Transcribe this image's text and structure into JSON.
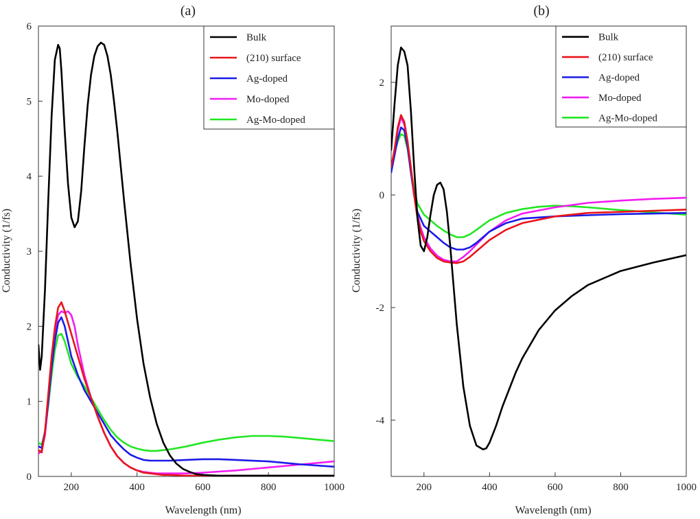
{
  "chart_data": [
    {
      "type": "line",
      "panel_label": "(a)",
      "xlabel": "Wavelength (nm)",
      "ylabel": "Conductivity (1/fs)",
      "xlim": [
        100,
        1000
      ],
      "ylim": [
        0,
        6
      ],
      "xticks": [
        200,
        400,
        600,
        800,
        1000
      ],
      "yticks": [
        0,
        1,
        2,
        3,
        4,
        5,
        6
      ],
      "legend_position": "top-right",
      "series": [
        {
          "name": "Bulk",
          "color": "#000000",
          "x": [
            100,
            105,
            110,
            120,
            130,
            140,
            150,
            160,
            165,
            170,
            180,
            190,
            200,
            210,
            220,
            230,
            240,
            250,
            260,
            270,
            280,
            290,
            300,
            310,
            320,
            330,
            340,
            350,
            360,
            380,
            400,
            420,
            440,
            460,
            480,
            500,
            520,
            540,
            560,
            580,
            600,
            650,
            700,
            800,
            900,
            1000
          ],
          "y": [
            1.75,
            1.42,
            1.6,
            2.5,
            3.7,
            4.8,
            5.55,
            5.75,
            5.7,
            5.4,
            4.6,
            3.9,
            3.45,
            3.32,
            3.4,
            3.8,
            4.4,
            4.95,
            5.35,
            5.6,
            5.73,
            5.78,
            5.75,
            5.6,
            5.35,
            5.0,
            4.6,
            4.15,
            3.7,
            2.85,
            2.1,
            1.5,
            1.05,
            0.7,
            0.45,
            0.28,
            0.17,
            0.1,
            0.06,
            0.03,
            0.02,
            0.01,
            0.01,
            0.01,
            0.01,
            0.01
          ]
        },
        {
          "name": "(210) surface",
          "color": "#e8141a",
          "x": [
            100,
            110,
            120,
            130,
            140,
            150,
            160,
            170,
            180,
            190,
            200,
            220,
            240,
            260,
            280,
            300,
            320,
            340,
            360,
            380,
            400,
            420,
            440,
            460,
            480,
            500,
            550,
            600,
            700,
            800,
            900,
            1000
          ],
          "y": [
            0.35,
            0.32,
            0.6,
            1.1,
            1.6,
            1.98,
            2.25,
            2.32,
            2.2,
            2.05,
            1.9,
            1.6,
            1.3,
            1.05,
            0.8,
            0.58,
            0.4,
            0.27,
            0.18,
            0.12,
            0.08,
            0.05,
            0.04,
            0.03,
            0.02,
            0.02,
            0.01,
            0.01,
            0.01,
            0.01,
            0.01,
            0.01
          ]
        },
        {
          "name": "Ag-doped",
          "color": "#1a1ae8",
          "x": [
            100,
            110,
            120,
            130,
            140,
            150,
            160,
            170,
            180,
            190,
            200,
            220,
            240,
            260,
            280,
            300,
            320,
            340,
            360,
            380,
            400,
            420,
            440,
            460,
            500,
            550,
            600,
            650,
            700,
            800,
            900,
            1000
          ],
          "y": [
            0.4,
            0.38,
            0.6,
            1.0,
            1.45,
            1.8,
            2.05,
            2.12,
            2.0,
            1.8,
            1.6,
            1.35,
            1.15,
            1.0,
            0.85,
            0.7,
            0.55,
            0.45,
            0.36,
            0.29,
            0.25,
            0.22,
            0.21,
            0.21,
            0.21,
            0.22,
            0.23,
            0.23,
            0.22,
            0.2,
            0.16,
            0.13
          ]
        },
        {
          "name": "Mo-doped",
          "color": "#f21cf2",
          "x": [
            100,
            110,
            120,
            130,
            140,
            150,
            160,
            170,
            180,
            190,
            200,
            210,
            220,
            240,
            260,
            280,
            300,
            320,
            340,
            360,
            380,
            400,
            420,
            440,
            460,
            500,
            550,
            600,
            700,
            800,
            900,
            1000
          ],
          "y": [
            0.3,
            0.35,
            0.55,
            1.0,
            1.5,
            1.9,
            2.15,
            2.2,
            2.18,
            2.2,
            2.15,
            2.0,
            1.75,
            1.35,
            1.05,
            0.8,
            0.58,
            0.4,
            0.27,
            0.18,
            0.12,
            0.08,
            0.06,
            0.05,
            0.04,
            0.04,
            0.04,
            0.05,
            0.08,
            0.12,
            0.16,
            0.2
          ]
        },
        {
          "name": "Ag-Mo-doped",
          "color": "#22e622",
          "x": [
            100,
            110,
            120,
            130,
            140,
            150,
            160,
            170,
            180,
            190,
            200,
            220,
            240,
            260,
            280,
            300,
            320,
            340,
            360,
            380,
            400,
            420,
            440,
            460,
            480,
            500,
            550,
            600,
            650,
            700,
            750,
            800,
            850,
            900,
            950,
            1000
          ],
          "y": [
            0.45,
            0.42,
            0.6,
            0.95,
            1.35,
            1.68,
            1.88,
            1.9,
            1.8,
            1.65,
            1.5,
            1.32,
            1.2,
            1.05,
            0.9,
            0.75,
            0.62,
            0.52,
            0.45,
            0.4,
            0.37,
            0.35,
            0.34,
            0.34,
            0.35,
            0.36,
            0.4,
            0.45,
            0.49,
            0.52,
            0.54,
            0.54,
            0.53,
            0.51,
            0.49,
            0.47
          ]
        }
      ]
    },
    {
      "type": "line",
      "panel_label": "(b)",
      "xlabel": "Wavelength (nm)",
      "ylabel": "Conductivity (1/fs)",
      "xlim": [
        100,
        1000
      ],
      "ylim": [
        -5,
        3
      ],
      "xticks": [
        200,
        400,
        600,
        800,
        1000
      ],
      "yticks": [
        -4,
        -2,
        0,
        2
      ],
      "legend_position": "top-right",
      "series": [
        {
          "name": "Bulk",
          "color": "#000000",
          "x": [
            100,
            110,
            120,
            130,
            140,
            150,
            160,
            170,
            180,
            190,
            200,
            210,
            220,
            230,
            240,
            250,
            260,
            270,
            280,
            290,
            300,
            320,
            340,
            360,
            380,
            390,
            400,
            420,
            440,
            460,
            480,
            500,
            550,
            600,
            650,
            700,
            800,
            900,
            1000
          ],
          "y": [
            0.8,
            1.6,
            2.3,
            2.62,
            2.55,
            2.3,
            1.5,
            0.5,
            -0.4,
            -0.9,
            -1.0,
            -0.75,
            -0.35,
            0.0,
            0.18,
            0.22,
            0.1,
            -0.3,
            -0.9,
            -1.6,
            -2.3,
            -3.4,
            -4.1,
            -4.45,
            -4.52,
            -4.5,
            -4.4,
            -4.1,
            -3.75,
            -3.45,
            -3.15,
            -2.9,
            -2.4,
            -2.05,
            -1.8,
            -1.6,
            -1.35,
            -1.2,
            -1.07
          ]
        },
        {
          "name": "(210) surface",
          "color": "#e8141a",
          "x": [
            100,
            110,
            120,
            130,
            140,
            150,
            160,
            170,
            180,
            190,
            200,
            220,
            240,
            260,
            280,
            300,
            320,
            340,
            360,
            400,
            450,
            500,
            600,
            700,
            800,
            900,
            1000
          ],
          "y": [
            0.5,
            0.8,
            1.2,
            1.42,
            1.3,
            0.95,
            0.5,
            0.0,
            -0.4,
            -0.65,
            -0.82,
            -1.0,
            -1.12,
            -1.18,
            -1.2,
            -1.21,
            -1.18,
            -1.1,
            -1.0,
            -0.8,
            -0.62,
            -0.5,
            -0.38,
            -0.32,
            -0.3,
            -0.28,
            -0.26
          ]
        },
        {
          "name": "Ag-doped",
          "color": "#1a1ae8",
          "x": [
            100,
            110,
            120,
            130,
            140,
            150,
            160,
            170,
            180,
            200,
            220,
            240,
            260,
            280,
            300,
            320,
            340,
            360,
            400,
            450,
            500,
            600,
            700,
            800,
            900,
            1000
          ],
          "y": [
            0.4,
            0.7,
            1.0,
            1.2,
            1.15,
            0.85,
            0.4,
            0.0,
            -0.3,
            -0.55,
            -0.65,
            -0.75,
            -0.85,
            -0.93,
            -0.97,
            -0.97,
            -0.93,
            -0.85,
            -0.65,
            -0.5,
            -0.42,
            -0.38,
            -0.36,
            -0.34,
            -0.33,
            -0.32
          ]
        },
        {
          "name": "Mo-doped",
          "color": "#f21cf2",
          "x": [
            100,
            110,
            120,
            130,
            140,
            150,
            160,
            170,
            180,
            190,
            200,
            220,
            240,
            260,
            280,
            300,
            320,
            340,
            360,
            400,
            450,
            500,
            600,
            700,
            800,
            900,
            1000
          ],
          "y": [
            0.45,
            0.8,
            1.15,
            1.38,
            1.25,
            0.9,
            0.45,
            0.0,
            -0.35,
            -0.58,
            -0.75,
            -0.95,
            -1.08,
            -1.15,
            -1.18,
            -1.18,
            -1.1,
            -1.0,
            -0.88,
            -0.65,
            -0.45,
            -0.33,
            -0.22,
            -0.14,
            -0.1,
            -0.07,
            -0.05
          ]
        },
        {
          "name": "Ag-Mo-doped",
          "color": "#22e622",
          "x": [
            100,
            110,
            120,
            130,
            140,
            150,
            160,
            170,
            180,
            200,
            220,
            240,
            260,
            280,
            300,
            320,
            340,
            360,
            400,
            450,
            500,
            550,
            600,
            650,
            700,
            800,
            900,
            1000
          ],
          "y": [
            0.5,
            0.75,
            0.95,
            1.08,
            1.05,
            0.82,
            0.45,
            0.1,
            -0.15,
            -0.35,
            -0.45,
            -0.55,
            -0.63,
            -0.7,
            -0.75,
            -0.75,
            -0.7,
            -0.62,
            -0.45,
            -0.32,
            -0.25,
            -0.21,
            -0.19,
            -0.2,
            -0.22,
            -0.27,
            -0.31,
            -0.35
          ]
        }
      ]
    }
  ]
}
